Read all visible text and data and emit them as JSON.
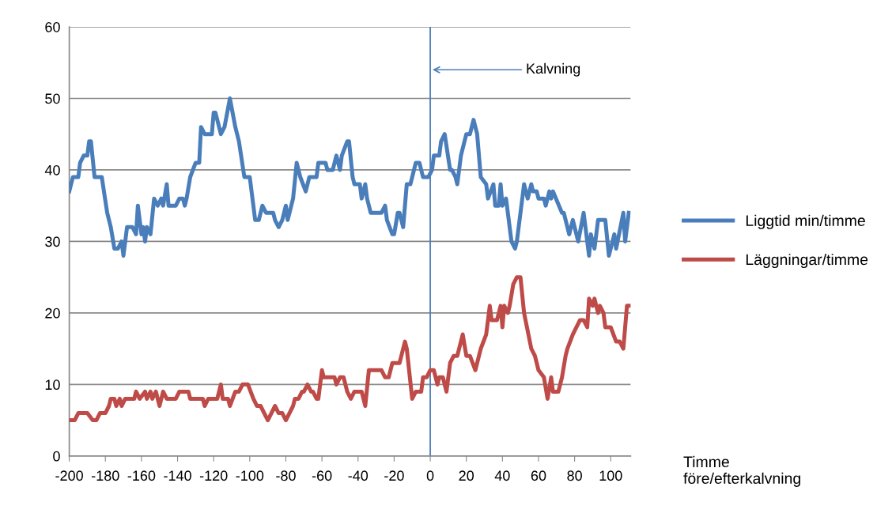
{
  "chart_data": {
    "type": "line",
    "xlabel": "Timme\nföre/efterkalvning",
    "xlim": [
      -200,
      111
    ],
    "xticks": [
      -200,
      -180,
      -160,
      -140,
      -120,
      -100,
      -80,
      -60,
      -40,
      -20,
      0,
      20,
      40,
      60,
      80,
      100
    ],
    "ylim": [
      0,
      60
    ],
    "yticks": [
      0,
      10,
      20,
      30,
      40,
      50,
      60
    ],
    "grid": "y",
    "legend": "right",
    "line_style": "solid",
    "marker": "none",
    "ref_lines": [
      {
        "axis": "x",
        "value": 0,
        "color": "#4a7ebb"
      }
    ],
    "annotations": [
      {
        "text": "Kalvning",
        "x": 0,
        "y": 54
      }
    ],
    "series": [
      {
        "name": "Liggtid min/timme",
        "color": "#4a7ebb",
        "x": [
          -200,
          -198,
          -195,
          -194,
          -192,
          -190,
          -189,
          -188,
          -186,
          -182,
          -179,
          -177,
          -175,
          -173,
          -171,
          -170,
          -168,
          -165,
          -163,
          -162,
          -160,
          -159,
          -158,
          -157,
          -155,
          -153,
          -151,
          -149,
          -148,
          -146,
          -145,
          -141,
          -139,
          -137,
          -136,
          -135,
          -133,
          -130,
          -128,
          -127,
          -125,
          -121,
          -120,
          -119,
          -116,
          -114,
          -111,
          -108,
          -106,
          -103,
          -100,
          -97,
          -95,
          -93,
          -91,
          -87,
          -86,
          -84,
          -82,
          -80,
          -79,
          -76,
          -74,
          -72,
          -69,
          -67,
          -63,
          -62,
          -58,
          -57,
          -54,
          -52,
          -50,
          -49,
          -46,
          -45,
          -43,
          -42,
          -39,
          -38,
          -36,
          -35,
          -33,
          -27,
          -25,
          -24,
          -21,
          -20,
          -18,
          -17,
          -15,
          -13,
          -11,
          -8,
          -6,
          -4,
          -1,
          1,
          2,
          5,
          6,
          8,
          11,
          12,
          14,
          15,
          17,
          20,
          22,
          24,
          26,
          28,
          31,
          32,
          35,
          36,
          38,
          39,
          40,
          42,
          45,
          47,
          48,
          52,
          54,
          56,
          57,
          59,
          60,
          63,
          64,
          66,
          67,
          68,
          73,
          74,
          77,
          79,
          82,
          85,
          88,
          89,
          91,
          93,
          97,
          99,
          102,
          103,
          107,
          108,
          110
        ],
        "values": [
          37,
          39,
          39,
          41,
          42,
          42,
          44,
          44,
          39,
          39,
          34,
          32,
          29,
          29,
          30,
          28,
          32,
          32,
          31,
          35,
          31,
          32,
          30,
          32,
          31,
          36,
          35,
          36,
          35,
          38,
          35,
          35,
          36,
          36,
          35,
          36,
          39,
          41,
          41,
          46,
          45,
          45,
          48,
          48,
          45,
          46,
          50,
          46,
          44,
          39,
          39,
          33,
          33,
          35,
          34,
          34,
          33,
          32,
          33,
          35,
          33,
          36,
          41,
          39,
          37,
          39,
          39,
          41,
          41,
          40,
          40,
          42,
          40,
          42,
          44,
          44,
          39,
          38,
          38,
          36,
          38,
          36,
          34,
          34,
          35,
          33,
          31,
          31,
          34,
          34,
          32,
          38,
          38,
          41,
          41,
          39,
          39,
          40,
          42,
          42,
          44,
          45,
          40,
          40,
          39,
          38,
          42,
          45,
          45,
          47,
          45,
          39,
          38,
          36,
          38,
          35,
          35,
          38,
          35,
          36,
          30,
          29,
          30,
          38,
          36,
          38,
          37,
          37,
          36,
          36,
          35,
          37,
          36,
          37,
          34,
          34,
          31,
          33,
          30,
          34,
          28,
          31,
          29,
          33,
          33,
          28,
          31,
          29,
          34,
          30,
          34
        ]
      },
      {
        "name": "Läggningar/timme",
        "color": "#be4b48",
        "x": [
          -200,
          -197,
          -195,
          -190,
          -187,
          -185,
          -183,
          -180,
          -178,
          -177,
          -175,
          -174,
          -172,
          -171,
          -169,
          -164,
          -163,
          -161,
          -158,
          -157,
          -155,
          -154,
          -152,
          -150,
          -148,
          -146,
          -141,
          -139,
          -134,
          -133,
          -126,
          -125,
          -123,
          -118,
          -116,
          -115,
          -112,
          -111,
          -108,
          -106,
          -104,
          -101,
          -98,
          -96,
          -94,
          -92,
          -90,
          -88,
          -86,
          -84,
          -82,
          -80,
          -78,
          -76,
          -75,
          -73,
          -71,
          -70,
          -68,
          -66,
          -65,
          -63,
          -62,
          -60,
          -59,
          -53,
          -52,
          -50,
          -48,
          -46,
          -44,
          -42,
          -38,
          -36,
          -34,
          -27,
          -25,
          -23,
          -21,
          -17,
          -14,
          -13,
          -10,
          -8,
          -5,
          -4,
          -2,
          0,
          2,
          4,
          5,
          7,
          9,
          11,
          13,
          15,
          17,
          18,
          20,
          22,
          25,
          26,
          28,
          31,
          33,
          34,
          37,
          39,
          40,
          41,
          43,
          44,
          46,
          48,
          50,
          52,
          56,
          58,
          60,
          63,
          65,
          67,
          68,
          71,
          73,
          75,
          76,
          79,
          81,
          83,
          85,
          87,
          88,
          90,
          91,
          93,
          94,
          96,
          97,
          100,
          103,
          105,
          107,
          109,
          111
        ],
        "values": [
          5,
          5,
          6,
          6,
          5,
          5,
          6,
          6,
          7,
          8,
          8,
          7,
          8,
          7,
          8,
          8,
          9,
          8,
          9,
          8,
          9,
          8,
          9,
          7,
          9,
          8,
          8,
          9,
          9,
          8,
          8,
          7,
          8,
          8,
          10,
          8,
          8,
          7,
          9,
          9,
          10,
          10,
          8,
          7,
          7,
          6,
          5,
          6,
          7,
          6,
          6,
          5,
          6,
          7,
          8,
          8,
          9,
          9,
          10,
          9,
          9,
          8,
          8,
          12,
          11,
          11,
          10,
          11,
          11,
          9,
          8,
          9,
          9,
          7,
          12,
          12,
          11,
          11,
          13,
          13,
          16,
          15,
          8,
          9,
          9,
          11,
          11,
          12,
          12,
          10,
          11,
          11,
          9,
          13,
          14,
          14,
          16,
          17,
          14,
          14,
          12,
          13,
          15,
          17,
          21,
          19,
          19,
          21,
          18,
          21,
          20,
          21,
          24,
          25,
          25,
          20,
          15,
          14,
          12,
          11,
          8,
          11,
          9,
          9,
          11,
          14,
          15,
          17,
          18,
          19,
          19,
          18,
          22,
          21,
          22,
          20,
          21,
          20,
          18,
          18,
          16,
          16,
          15,
          21,
          21
        ]
      }
    ]
  }
}
